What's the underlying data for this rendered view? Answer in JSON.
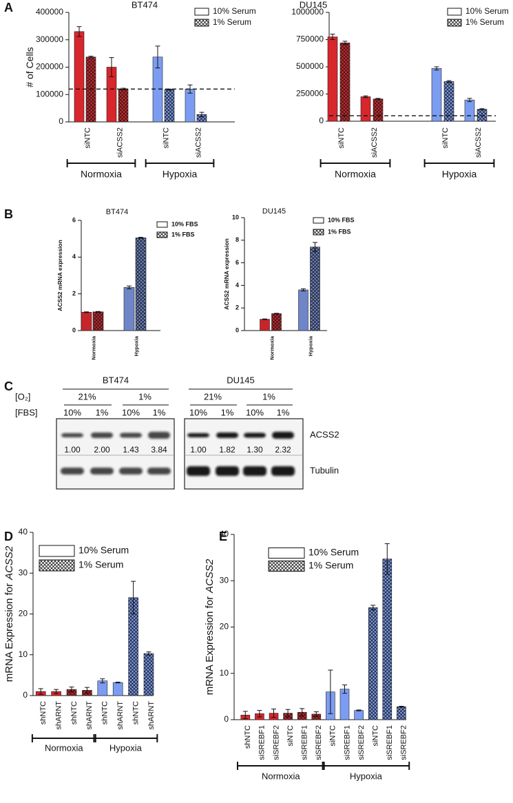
{
  "panel_labels": [
    "A",
    "B",
    "C",
    "D",
    "E"
  ],
  "chart_data": [
    {
      "type": "bar",
      "title": "BT474",
      "ylabel": "# of Cells",
      "categories": [
        "siNTC",
        "siACSS2",
        "siNTC",
        "siACSS2"
      ],
      "groups": [
        {
          "name": "Normoxia",
          "color": "#d7262c",
          "size": 2
        },
        {
          "name": "Hypoxia",
          "color": "#7b9cf0",
          "size": 2
        }
      ],
      "series": [
        {
          "name": "10% Serum",
          "pattern": "solid",
          "values": [
            330000,
            200000,
            237000,
            120000
          ],
          "errors": [
            18000,
            35000,
            40000,
            15000
          ]
        },
        {
          "name": "1% Serum",
          "pattern": "crosshatch",
          "values": [
            237000,
            120000,
            118000,
            27000
          ],
          "errors": [
            3000,
            3000,
            2000,
            8000
          ]
        }
      ],
      "ylim": [
        0,
        400000
      ],
      "yticks": [
        0,
        100000,
        200000,
        300000,
        400000
      ],
      "reference_line": 120000
    },
    {
      "type": "bar",
      "title": "DU145",
      "categories": [
        "siNTC",
        "siACSS2",
        "siNTC",
        "siACSS2"
      ],
      "groups": [
        {
          "name": "Normoxia",
          "color": "#d7262c",
          "size": 2
        },
        {
          "name": "Hypoxia",
          "color": "#7b9cf0",
          "size": 2
        }
      ],
      "series": [
        {
          "name": "10% Serum",
          "pattern": "solid",
          "values": [
            775000,
            225000,
            485000,
            195000
          ],
          "errors": [
            25000,
            8000,
            15000,
            15000
          ]
        },
        {
          "name": "1% Serum",
          "pattern": "crosshatch",
          "values": [
            720000,
            205000,
            365000,
            110000
          ],
          "errors": [
            15000,
            5000,
            8000,
            5000
          ]
        }
      ],
      "ylim": [
        0,
        1000000
      ],
      "yticks": [
        0,
        250000,
        500000,
        750000,
        1000000
      ],
      "reference_line": 50000
    },
    {
      "type": "bar",
      "title": "BT474",
      "ylabel": "ACSS2 mRNA expression",
      "categories": [
        "Normoxia",
        "Hypoxia"
      ],
      "colors": [
        "#c8252b",
        "#6e86c8"
      ],
      "series": [
        {
          "name": "10% FBS",
          "pattern": "solid",
          "values": [
            1.0,
            2.35
          ],
          "errors": [
            0.02,
            0.08
          ]
        },
        {
          "name": "1% FBS",
          "pattern": "crosshatch",
          "values": [
            1.02,
            5.05
          ],
          "errors": [
            0.02,
            0.03
          ]
        }
      ],
      "ylim": [
        0,
        6
      ],
      "yticks": [
        0,
        2,
        4,
        6
      ]
    },
    {
      "type": "bar",
      "title": "DU145",
      "ylabel": "ACSS2 mRNA expression",
      "categories": [
        "Normoxia",
        "Hypoxia"
      ],
      "colors": [
        "#c8252b",
        "#6e86c8"
      ],
      "series": [
        {
          "name": "10% FBS",
          "pattern": "solid",
          "values": [
            1.0,
            3.6
          ],
          "errors": [
            0.03,
            0.1
          ]
        },
        {
          "name": "1% FBS",
          "pattern": "crosshatch",
          "values": [
            1.5,
            7.4
          ],
          "errors": [
            0.03,
            0.4
          ]
        }
      ],
      "ylim": [
        0,
        10
      ],
      "yticks": [
        0,
        2,
        4,
        6,
        8,
        10
      ]
    },
    {
      "type": "bar",
      "ylabel": "mRNA Expression for",
      "ylabel_italic": "ACSS2",
      "categories": [
        "shNTC",
        "shARNT",
        "shNTC",
        "shARNT",
        "shNTC",
        "shARNT",
        "shNTC",
        "shARNT"
      ],
      "groups": [
        {
          "name": "Normoxia",
          "color": "#d7262c",
          "size": 4
        },
        {
          "name": "Hypoxia",
          "color": "#7b9cf0",
          "size": 4
        }
      ],
      "series": [
        {
          "name": "10% Serum",
          "pattern": "solid",
          "values": [
            1.0,
            1.0,
            null,
            null,
            3.6,
            3.2,
            null,
            null
          ],
          "errors": [
            0.7,
            0.5,
            null,
            null,
            0.5,
            0.1,
            null,
            null
          ]
        },
        {
          "name": "1% Serum",
          "pattern": "crosshatch",
          "values": [
            null,
            null,
            1.5,
            1.3,
            null,
            null,
            24.0,
            10.3
          ],
          "errors": [
            null,
            null,
            0.6,
            0.7,
            null,
            null,
            4.0,
            0.4
          ]
        }
      ],
      "ylim": [
        0,
        40
      ],
      "yticks": [
        0,
        10,
        20,
        30,
        40
      ]
    },
    {
      "type": "bar",
      "ylabel": "mRNA Expression for",
      "ylabel_italic": "ACSS2",
      "categories": [
        "shNTC",
        "siSREBF1",
        "siSREBF2",
        "siNTC",
        "siSREBF1",
        "siSREBF2",
        "siNTC",
        "siSREBF1",
        "siSREBF2",
        "siNTC",
        "siSREBF1",
        "siSREBF2"
      ],
      "groups": [
        {
          "name": "Normoxia",
          "color": "#d7262c",
          "size": 6
        },
        {
          "name": "Hypoxia",
          "color": "#7b9cf0",
          "size": 6
        }
      ],
      "series": [
        {
          "name": "10% Serum",
          "pattern": "solid",
          "values": [
            1.0,
            1.3,
            1.4,
            null,
            null,
            null,
            6.0,
            6.6,
            2.0,
            null,
            null,
            null
          ],
          "errors": [
            0.8,
            0.7,
            0.9,
            null,
            null,
            null,
            4.7,
            0.9,
            0.1,
            null,
            null,
            null
          ]
        },
        {
          "name": "1% Serum",
          "pattern": "crosshatch",
          "values": [
            null,
            null,
            null,
            1.4,
            1.6,
            1.2,
            null,
            null,
            null,
            24.2,
            34.7,
            2.8
          ],
          "errors": [
            null,
            null,
            null,
            0.8,
            0.8,
            0.5,
            null,
            null,
            null,
            0.5,
            3.3,
            0.1
          ]
        }
      ],
      "ylim": [
        0,
        40
      ],
      "yticks": [
        0,
        10,
        20,
        30,
        40
      ]
    }
  ],
  "blot": {
    "o2_label": "[O₂]",
    "fbs_label": "[FBS]",
    "proteins": [
      "ACSS2",
      "Tubulin"
    ],
    "panels": [
      {
        "cell_line": "BT474",
        "o2": [
          "21%",
          "1%"
        ],
        "fbs": [
          "10%",
          "1%",
          "10%",
          "1%"
        ],
        "quantification": [
          "1.00",
          "2.00",
          "1.43",
          "3.84"
        ]
      },
      {
        "cell_line": "DU145",
        "o2": [
          "21%",
          "1%"
        ],
        "fbs": [
          "10%",
          "1%",
          "10%",
          "1%"
        ],
        "quantification": [
          "1.00",
          "1.82",
          "1.30",
          "2.32"
        ]
      }
    ]
  }
}
